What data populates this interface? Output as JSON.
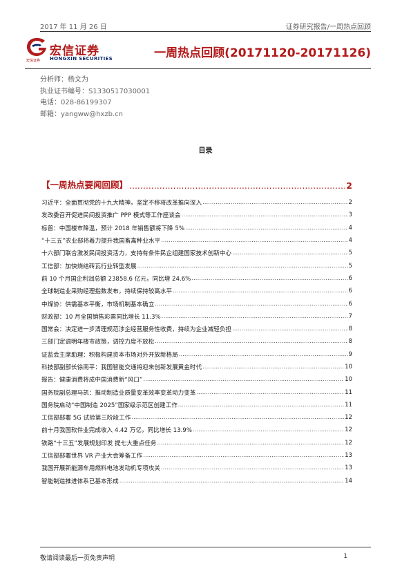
{
  "header": {
    "date": "2017 年 11 月 26 日",
    "category": "证券研究报告/一周热点回顾"
  },
  "logo": {
    "cn_name": "宏信证券",
    "small_text": "宏信证券",
    "en_name": "HONGXIN SECURITIES"
  },
  "title": "一周热点回顾(20171120-20171126)",
  "author": {
    "analyst": "分析师：杨文为",
    "cert": "执业证书编号：S1330517030001",
    "phone": "电话：028-86199307",
    "email": "邮箱：yangww@hxzb.cn"
  },
  "toc": {
    "heading": "目录",
    "section": {
      "label": "【一周热点要闻回顾】",
      "page": "2"
    },
    "items": [
      {
        "text": "习近平：全面贯彻党的十九大精神，坚定不移将改革推向深入",
        "page": "2"
      },
      {
        "text": "发改委召开促进民间投资推广 PPP 模式等工作座谈会",
        "page": "3"
      },
      {
        "text": "标普：中国楼市降温，预计 2018 年销售额将下降 5%",
        "page": "4"
      },
      {
        "text": "“十三五”农业部将着力提升我国畜禽种业水平",
        "page": "4"
      },
      {
        "text": "十六部门联合激发民间投资活力，支持有条件民企组建国家技术创新中心",
        "page": "5"
      },
      {
        "text": "工信部：加快烧结砖瓦行业转型发展",
        "page": "5"
      },
      {
        "text": "前 10 个月国企利润总额 23858.6 亿元，同比增 24.6%",
        "page": "6"
      },
      {
        "text": "全球制造业采购经理指数发布，持续保持较高水平",
        "page": "6"
      },
      {
        "text": "中煤协：供需基本平衡，市场机制基本确立",
        "page": "6"
      },
      {
        "text": "财政部：10 月全国销售彩票同比增长 11.3%",
        "page": "7"
      },
      {
        "text": "国常会：决定进一步清理规范涉企经营服务性收费，持续为企业减轻负担",
        "page": "8"
      },
      {
        "text": "三部门定调明年楼市政策，调控力度不放松",
        "page": "8"
      },
      {
        "text": "证监会主席助理：积极构建资本市场对外开放新格局",
        "page": "9"
      },
      {
        "text": "科技部副部长徐南平：我国智能交通将迎来创新发展黄金时代",
        "page": "10"
      },
      {
        "text": "报告：健康消费将成中国消费新“风口”",
        "page": "10"
      },
      {
        "text": "国务院副总理马凯：推动制造业质量变革效率变革动力变革",
        "page": "11"
      },
      {
        "text": "国务院启动“中国制造 2025”国家级示范区创建工作",
        "page": "11"
      },
      {
        "text": "工信部部署 5G 试验第三阶段工作",
        "page": "12"
      },
      {
        "text": "前十月我国软件业完成收入 4.42 万亿，同比增长 13.9%",
        "page": "12"
      },
      {
        "text": "铁路“十三五”发展规划印发 提七大重点任务",
        "page": "12"
      },
      {
        "text": "工信部部署世界 VR 产业大会筹备工作",
        "page": "13"
      },
      {
        "text": "我国开展新能源车用燃料电池发动机专项攻关",
        "page": "13"
      },
      {
        "text": "智能制造推进体系已基本形成",
        "page": "14"
      }
    ]
  },
  "footer": {
    "disclaimer": "敬请阅读最后一页免责声明",
    "page": "1"
  },
  "colors": {
    "brand_red": "#b31b1b",
    "brand_blue": "#0b2a6b"
  }
}
